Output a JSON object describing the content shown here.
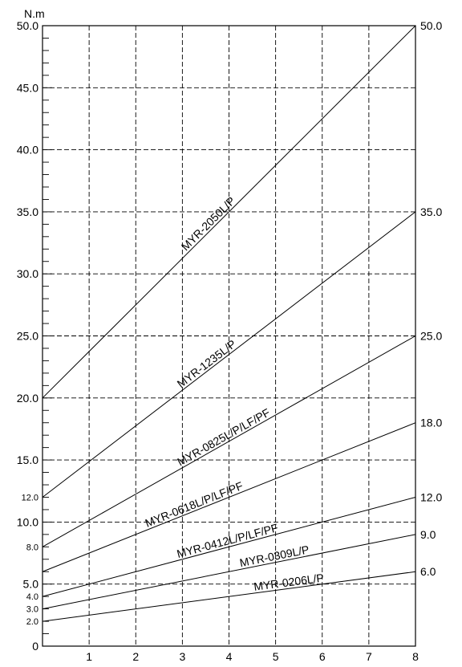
{
  "chart_data": {
    "type": "line",
    "unit_label": "N.m",
    "xlim": [
      0,
      8
    ],
    "ylim": [
      0,
      50
    ],
    "grid": true,
    "x_ticks": [
      {
        "v": 1,
        "label": "1"
      },
      {
        "v": 2,
        "label": "2"
      },
      {
        "v": 3,
        "label": "3"
      },
      {
        "v": 4,
        "label": "4"
      },
      {
        "v": 5,
        "label": "5"
      },
      {
        "v": 6,
        "label": "6"
      },
      {
        "v": 7,
        "label": "7"
      },
      {
        "v": 8,
        "label": "8"
      }
    ],
    "y_gridlines": [
      5,
      10,
      15,
      20,
      25,
      30,
      35,
      40,
      45,
      50
    ],
    "y_tick_labels": [
      {
        "v": 0,
        "label": "0",
        "size": "big"
      },
      {
        "v": 2,
        "label": "2.0",
        "size": "small"
      },
      {
        "v": 3,
        "label": "3.0",
        "size": "small"
      },
      {
        "v": 4,
        "label": "4.0",
        "size": "small"
      },
      {
        "v": 5,
        "label": "5.0",
        "size": "big"
      },
      {
        "v": 8,
        "label": "8.0",
        "size": "small"
      },
      {
        "v": 10,
        "label": "10.0",
        "size": "big"
      },
      {
        "v": 12,
        "label": "12.0",
        "size": "small"
      },
      {
        "v": 15,
        "label": "15.0",
        "size": "big"
      },
      {
        "v": 20,
        "label": "20.0",
        "size": "big"
      },
      {
        "v": 25,
        "label": "25.0",
        "size": "big"
      },
      {
        "v": 30,
        "label": "30.0",
        "size": "big"
      },
      {
        "v": 35,
        "label": "35.0",
        "size": "big"
      },
      {
        "v": 40,
        "label": "40.0",
        "size": "big"
      },
      {
        "v": 45,
        "label": "45.0",
        "size": "big"
      },
      {
        "v": 50,
        "label": "50.0",
        "size": "big"
      }
    ],
    "series": [
      {
        "name": "MYR-2050L/P",
        "x": [
          0,
          8
        ],
        "y": [
          20,
          50
        ],
        "end_label": "50.0",
        "label_at": 3.65
      },
      {
        "name": "MYR-1235L/P",
        "x": [
          0,
          8
        ],
        "y": [
          12,
          35
        ],
        "end_label": "35.0",
        "label_at": 3.6
      },
      {
        "name": "MYR-0825L/P/LF/PF",
        "x": [
          0,
          8
        ],
        "y": [
          8,
          25
        ],
        "end_label": "25.0",
        "label_at": 3.95
      },
      {
        "name": "MYR-0618L/P/LF/PF",
        "x": [
          0,
          8
        ],
        "y": [
          6,
          18
        ],
        "end_label": "18.0",
        "label_at": 3.3
      },
      {
        "name": "MYR-0412L/P/LF/PF",
        "x": [
          0,
          8
        ],
        "y": [
          4,
          12
        ],
        "end_label": "12.0",
        "label_at": 4.0
      },
      {
        "name": "MYR-0309L/P",
        "x": [
          0,
          8
        ],
        "y": [
          3,
          9
        ],
        "end_label": "9.0",
        "label_at": 5.0
      },
      {
        "name": "MYR-0206L/P",
        "x": [
          0,
          8
        ],
        "y": [
          2,
          6
        ],
        "end_label": "6.0",
        "label_at": 5.3
      }
    ]
  }
}
